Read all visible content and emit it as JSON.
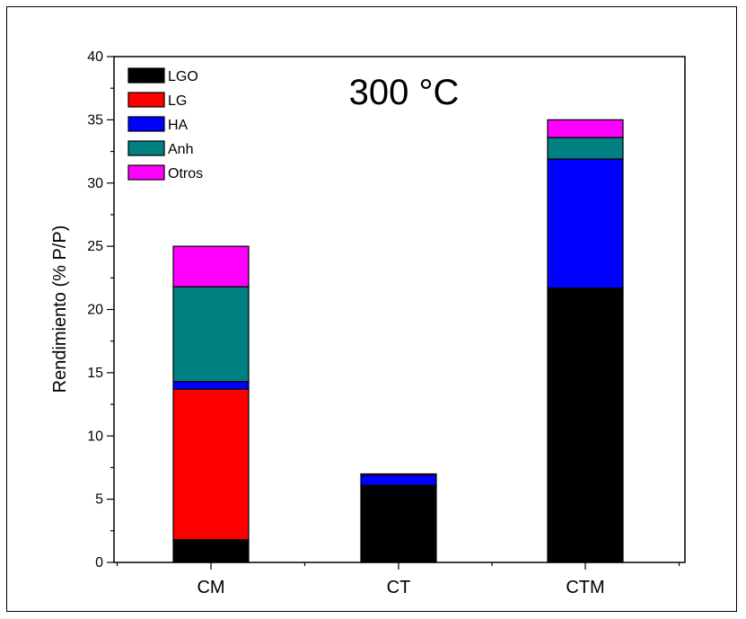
{
  "chart_data": {
    "type": "bar",
    "stacked": true,
    "title": "",
    "annotation": "300 °C",
    "xlabel": "",
    "ylabel": "Rendimiento (% P/P)",
    "ylim": [
      0,
      40
    ],
    "yticks": [
      0,
      5,
      10,
      15,
      20,
      25,
      30,
      35,
      40
    ],
    "categories": [
      "CM",
      "CT",
      "CTM"
    ],
    "legend_position": "top-left",
    "grid": false,
    "series": [
      {
        "name": "LGO",
        "color": "#000000",
        "values": [
          1.8,
          6.1,
          21.7
        ]
      },
      {
        "name": "LG",
        "color": "#ff0000",
        "values": [
          11.9,
          0.0,
          0.0
        ]
      },
      {
        "name": "HA",
        "color": "#0000ff",
        "values": [
          0.6,
          0.8,
          10.2
        ]
      },
      {
        "name": "Anh",
        "color": "#008080",
        "values": [
          7.5,
          0.0,
          1.7
        ]
      },
      {
        "name": "Otros",
        "color": "#ff00ff",
        "values": [
          3.2,
          0.1,
          1.4
        ]
      }
    ]
  }
}
